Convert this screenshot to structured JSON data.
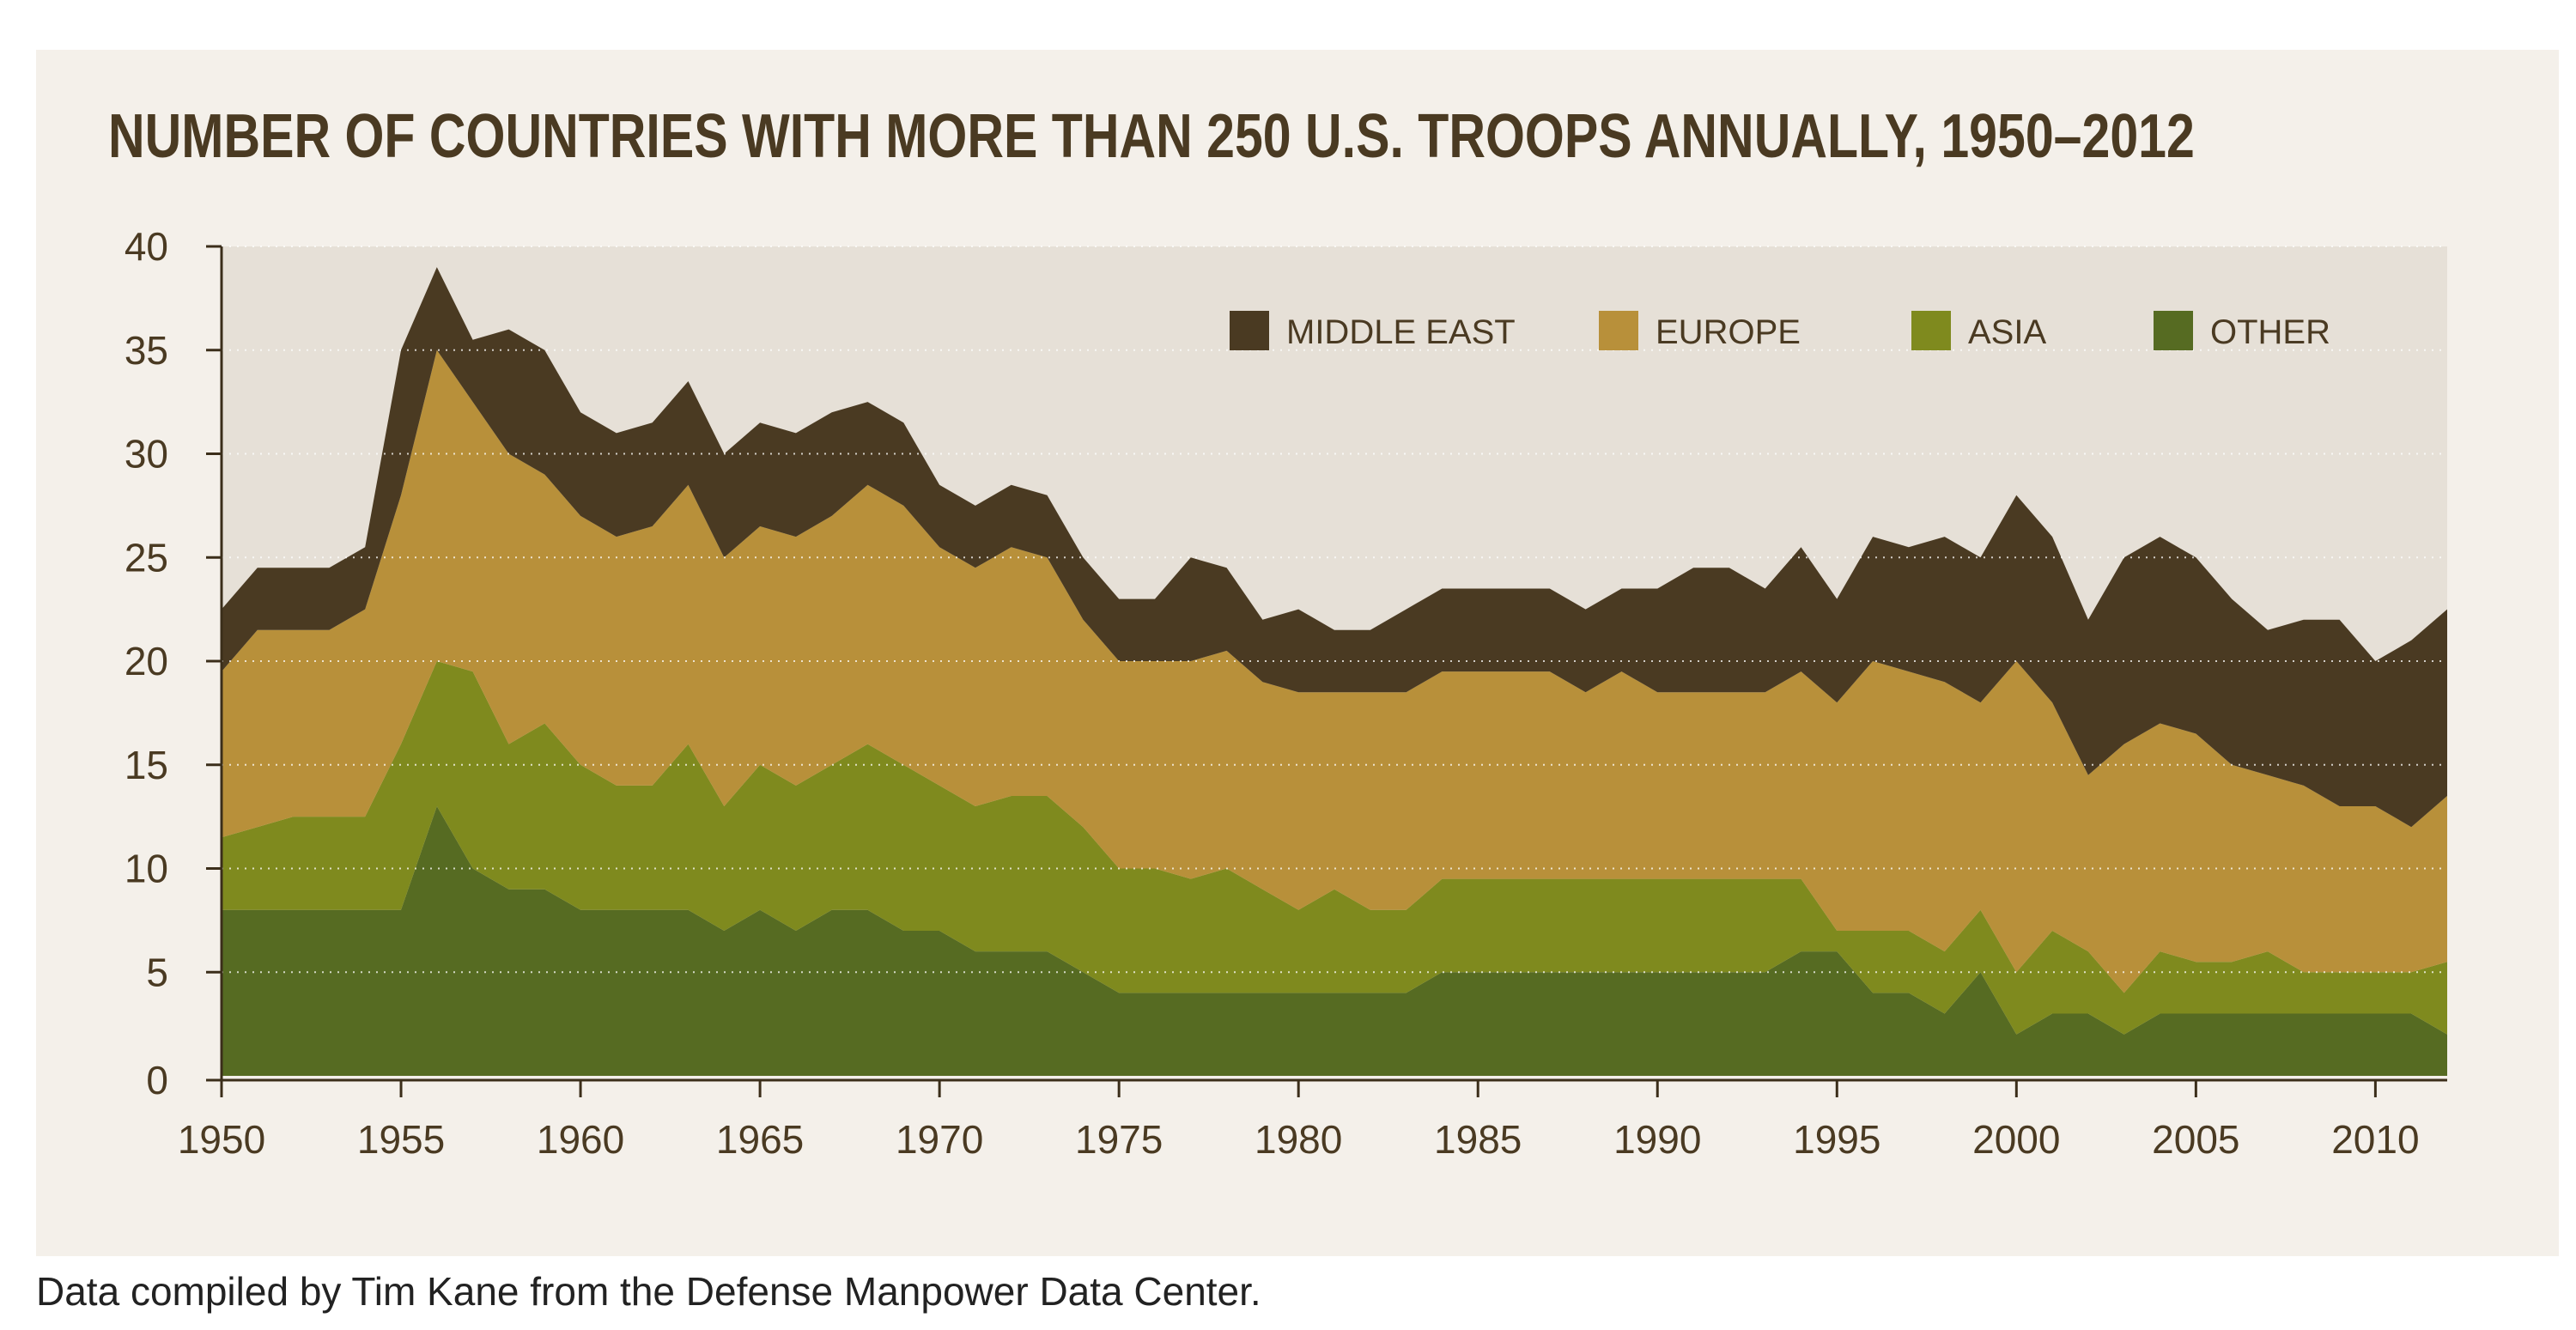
{
  "caption": "Data compiled by Tim Kane from the Defense Manpower Data Center.",
  "colors": {
    "panel_background": "#f4f0ea",
    "plot_background": "#e6e0d7",
    "middle_east": "#4a3a22",
    "europe": "#b8903a",
    "asia": "#7f8a1e",
    "other": "#566b22",
    "axis": "#3b2e1a",
    "grid": "#ffffff"
  },
  "chart_data": {
    "type": "area",
    "stacked": true,
    "title": "NUMBER OF COUNTRIES WITH MORE THAN 250 U.S. TROOPS ANNUALLY, 1950–2012",
    "xlabel": "",
    "ylabel": "",
    "xlim": [
      1950,
      2012
    ],
    "ylim": [
      0,
      40
    ],
    "x_ticks": [
      1950,
      1955,
      1960,
      1965,
      1970,
      1975,
      1980,
      1985,
      1990,
      1995,
      2000,
      2005,
      2010
    ],
    "y_ticks": [
      0,
      5,
      10,
      15,
      20,
      25,
      30,
      35,
      40
    ],
    "grid": "horizontal dotted",
    "legend_position": "top-right",
    "x": [
      1950,
      1951,
      1952,
      1953,
      1954,
      1955,
      1956,
      1957,
      1958,
      1959,
      1960,
      1961,
      1962,
      1963,
      1964,
      1965,
      1966,
      1967,
      1968,
      1969,
      1970,
      1971,
      1972,
      1973,
      1974,
      1975,
      1976,
      1977,
      1978,
      1979,
      1980,
      1981,
      1982,
      1983,
      1984,
      1985,
      1986,
      1987,
      1988,
      1989,
      1990,
      1991,
      1992,
      1993,
      1994,
      1995,
      1996,
      1997,
      1998,
      1999,
      2000,
      2001,
      2002,
      2003,
      2004,
      2005,
      2006,
      2007,
      2008,
      2009,
      2010,
      2011,
      2012
    ],
    "series": [
      {
        "name": "OTHER",
        "values": [
          8,
          8,
          8,
          8,
          8,
          8,
          13,
          10,
          9,
          9,
          8,
          8,
          8,
          8,
          7,
          8,
          7,
          8,
          8,
          7,
          7,
          6,
          6,
          6,
          5,
          4,
          4,
          4,
          4,
          4,
          4,
          4,
          4,
          4,
          5,
          5,
          5,
          5,
          5,
          5,
          5,
          5,
          5,
          5,
          6,
          6,
          4,
          4,
          3,
          5,
          2,
          3,
          3,
          2,
          3,
          3,
          3,
          3,
          3,
          3,
          3,
          3,
          2
        ]
      },
      {
        "name": "ASIA",
        "values": [
          3.5,
          4,
          4.5,
          4.5,
          4.5,
          8,
          7,
          9.5,
          7,
          8,
          7,
          6,
          6,
          8,
          6,
          7,
          7,
          7,
          8,
          8,
          7,
          7,
          7.5,
          7.5,
          7,
          6,
          6,
          5.5,
          6,
          5,
          4,
          5,
          4,
          4,
          4.5,
          4.5,
          4.5,
          4.5,
          4.5,
          4.5,
          4.5,
          4.5,
          4.5,
          4.5,
          3.5,
          1,
          3,
          3,
          3,
          3,
          3,
          4,
          3,
          2,
          3,
          2.5,
          2.5,
          3,
          2,
          2,
          2,
          2,
          3.5
        ]
      },
      {
        "name": "EUROPE",
        "values": [
          8,
          9.5,
          9,
          9,
          10,
          12,
          15,
          13,
          14,
          12,
          12,
          12,
          12.5,
          12.5,
          12,
          11.5,
          12,
          12,
          12.5,
          12.5,
          11.5,
          11.5,
          12,
          11.5,
          10,
          10,
          10,
          10.5,
          10.5,
          10,
          10.5,
          9.5,
          10.5,
          10.5,
          10,
          10,
          10,
          10,
          9,
          10,
          9,
          9,
          9,
          9,
          10,
          11,
          13,
          12.5,
          13,
          10,
          15,
          11,
          8.5,
          12,
          11,
          11,
          9.5,
          8.5,
          9,
          8,
          8,
          7,
          8
        ]
      },
      {
        "name": "MIDDLE EAST",
        "values": [
          3,
          3,
          3,
          3,
          3,
          7,
          4,
          3,
          6,
          6,
          5,
          5,
          5,
          5,
          5,
          5,
          5,
          5,
          4,
          4,
          3,
          3,
          3,
          3,
          3,
          3,
          3,
          5,
          4,
          3,
          4,
          3,
          3,
          4,
          4,
          4,
          4,
          4,
          4,
          4,
          5,
          6,
          6,
          5,
          6,
          5,
          6,
          6,
          7,
          7,
          8,
          8,
          7.5,
          9,
          9,
          8.5,
          8,
          7,
          8,
          9,
          7,
          9,
          9
        ]
      }
    ]
  }
}
